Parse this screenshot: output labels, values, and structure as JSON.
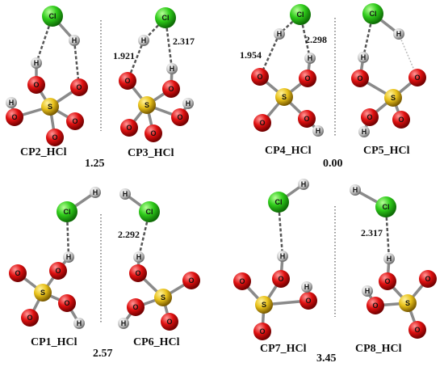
{
  "elements": [
    "Cl",
    "H",
    "O",
    "S"
  ],
  "panels": [
    {
      "name": "CP2_HCl"
    },
    {
      "name": "CP3_HCl"
    },
    {
      "name": "CP4_HCl"
    },
    {
      "name": "CP5_HCl"
    },
    {
      "name": "CP1_HCl"
    },
    {
      "name": "CP6_HCl"
    },
    {
      "name": "CP7_HCl"
    },
    {
      "name": "CP8_HCl"
    }
  ],
  "energies": [
    "1.25",
    "0.00",
    "2.57",
    "3.45"
  ],
  "distances": [
    "1.921",
    "2.317",
    "1.954",
    "2.298",
    "2.292",
    "2.317"
  ]
}
